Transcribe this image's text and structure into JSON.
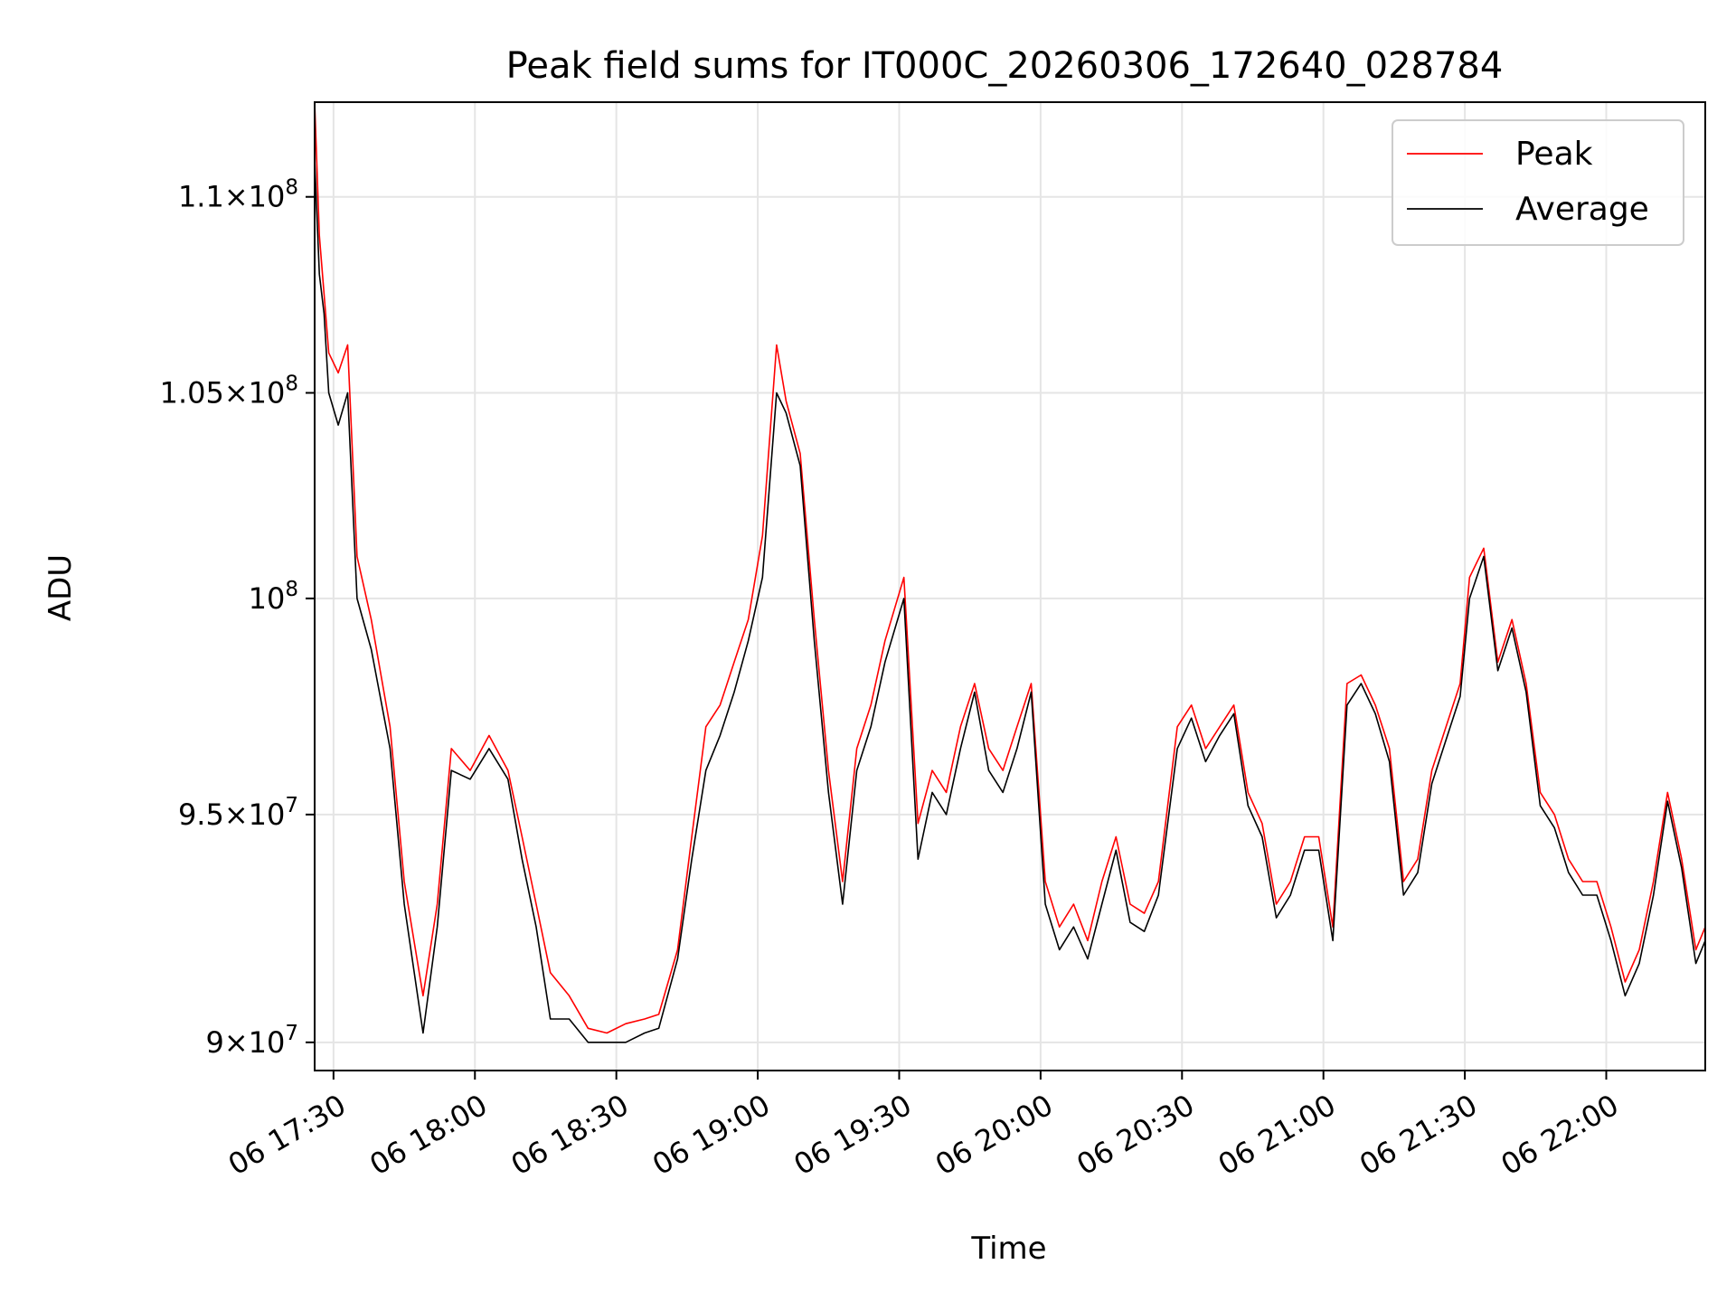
{
  "chart_data": {
    "type": "line",
    "title": "Peak field sums for IT000C_20260306_172640_028784",
    "xlabel": "Time",
    "ylabel": "ADU",
    "yscale": "log",
    "ylim": [
      89400000,
      112500000
    ],
    "xlim": [
      "06 17:26",
      "06 22:21"
    ],
    "grid": true,
    "legend_position": "top-right",
    "x_ticks": [
      "06 17:30",
      "06 18:00",
      "06 18:30",
      "06 19:00",
      "06 19:30",
      "06 20:00",
      "06 20:30",
      "06 21:00",
      "06 21:30",
      "06 22:00"
    ],
    "y_ticks": [
      {
        "value": 90000000,
        "mantissa": "9",
        "exponent": "7"
      },
      {
        "value": 95000000,
        "mantissa": "9.5",
        "exponent": "7"
      },
      {
        "value": 100000000,
        "mantissa": "",
        "exponent": "8"
      },
      {
        "value": 105000000,
        "mantissa": "1.05",
        "exponent": "8"
      },
      {
        "value": 110000000,
        "mantissa": "1.1",
        "exponent": "8"
      }
    ],
    "x": [
      "06 17:26",
      "06 17:27",
      "06 17:28",
      "06 17:29",
      "06 17:31",
      "06 17:33",
      "06 17:35",
      "06 17:38",
      "06 17:42",
      "06 17:45",
      "06 17:49",
      "06 17:52",
      "06 17:55",
      "06 17:59",
      "06 18:03",
      "06 18:07",
      "06 18:10",
      "06 18:13",
      "06 18:16",
      "06 18:20",
      "06 18:24",
      "06 18:28",
      "06 18:32",
      "06 18:36",
      "06 18:39",
      "06 18:43",
      "06 18:46",
      "06 18:49",
      "06 18:52",
      "06 18:55",
      "06 18:58",
      "06 19:01",
      "06 19:04",
      "06 19:06",
      "06 19:09",
      "06 19:12",
      "06 19:15",
      "06 19:18",
      "06 19:21",
      "06 19:24",
      "06 19:27",
      "06 19:31",
      "06 19:34",
      "06 19:37",
      "06 19:40",
      "06 19:43",
      "06 19:46",
      "06 19:49",
      "06 19:52",
      "06 19:55",
      "06 19:58",
      "06 20:01",
      "06 20:04",
      "06 20:07",
      "06 20:10",
      "06 20:13",
      "06 20:16",
      "06 20:19",
      "06 20:22",
      "06 20:25",
      "06 20:29",
      "06 20:32",
      "06 20:35",
      "06 20:38",
      "06 20:41",
      "06 20:44",
      "06 20:47",
      "06 20:50",
      "06 20:53",
      "06 20:56",
      "06 20:59",
      "06 21:02",
      "06 21:05",
      "06 21:08",
      "06 21:11",
      "06 21:14",
      "06 21:17",
      "06 21:20",
      "06 21:23",
      "06 21:26",
      "06 21:29",
      "06 21:31",
      "06 21:34",
      "06 21:37",
      "06 21:40",
      "06 21:43",
      "06 21:46",
      "06 21:49",
      "06 21:52",
      "06 21:55",
      "06 21:58",
      "06 22:01",
      "06 22:04",
      "06 22:07",
      "06 22:10",
      "06 22:13",
      "06 22:16",
      "06 22:19",
      "06 22:21"
    ],
    "series": [
      {
        "name": "Peak",
        "color": "#ff0000",
        "values": [
          112500000,
          109000000,
          107500000,
          106000000,
          105500000,
          106200000,
          101000000,
          99500000,
          97000000,
          93500000,
          91000000,
          93000000,
          96500000,
          96000000,
          96800000,
          96000000,
          94500000,
          93000000,
          91500000,
          91000000,
          90300000,
          90200000,
          90400000,
          90500000,
          90600000,
          92000000,
          94500000,
          97000000,
          97500000,
          98500000,
          99500000,
          101500000,
          106200000,
          104800000,
          103500000,
          99500000,
          96000000,
          93500000,
          96500000,
          97500000,
          99000000,
          100500000,
          94800000,
          96000000,
          95500000,
          97000000,
          98000000,
          96500000,
          96000000,
          97000000,
          98000000,
          93500000,
          92500000,
          93000000,
          92200000,
          93500000,
          94500000,
          93000000,
          92800000,
          93500000,
          97000000,
          97500000,
          96500000,
          97000000,
          97500000,
          95500000,
          94800000,
          93000000,
          93500000,
          94500000,
          94500000,
          92500000,
          98000000,
          98200000,
          97500000,
          96500000,
          93500000,
          94000000,
          96000000,
          97000000,
          98000000,
          100500000,
          101200000,
          98500000,
          99500000,
          98000000,
          95500000,
          95000000,
          94000000,
          93500000,
          93500000,
          92500000,
          91300000,
          92000000,
          93500000,
          95500000,
          94000000,
          92000000,
          92500000
        ]
      },
      {
        "name": "Average",
        "color": "#000000",
        "values": [
          111000000,
          108000000,
          107000000,
          105000000,
          104200000,
          105000000,
          100000000,
          98800000,
          96500000,
          93000000,
          90200000,
          92500000,
          96000000,
          95800000,
          96500000,
          95800000,
          94000000,
          92500000,
          90500000,
          90500000,
          90000000,
          90000000,
          90000000,
          90200000,
          90300000,
          91800000,
          94000000,
          96000000,
          96800000,
          97800000,
          99000000,
          100500000,
          105000000,
          104500000,
          103200000,
          99000000,
          95500000,
          93000000,
          96000000,
          97000000,
          98500000,
          100000000,
          94000000,
          95500000,
          95000000,
          96500000,
          97800000,
          96000000,
          95500000,
          96500000,
          97800000,
          93000000,
          92000000,
          92500000,
          91800000,
          93000000,
          94200000,
          92600000,
          92400000,
          93200000,
          96500000,
          97200000,
          96200000,
          96800000,
          97300000,
          95200000,
          94500000,
          92700000,
          93200000,
          94200000,
          94200000,
          92200000,
          97500000,
          98000000,
          97300000,
          96200000,
          93200000,
          93700000,
          95700000,
          96700000,
          97700000,
          100000000,
          101000000,
          98300000,
          99300000,
          97800000,
          95200000,
          94700000,
          93700000,
          93200000,
          93200000,
          92200000,
          91000000,
          91700000,
          93200000,
          95300000,
          93800000,
          91700000,
          92200000
        ]
      }
    ]
  }
}
